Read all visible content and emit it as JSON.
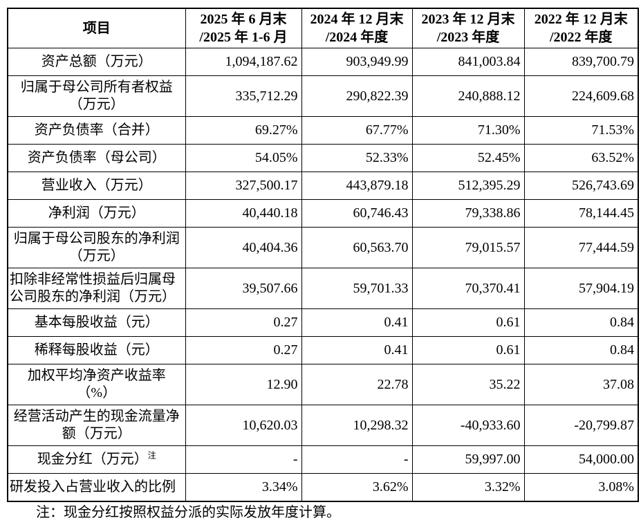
{
  "table": {
    "header": {
      "item_label": "项目",
      "periods": [
        {
          "line1": "2025 年 6 月末",
          "line2": "/2025 年 1-6 月"
        },
        {
          "line1": "2024 年 12 月末",
          "line2": "/2024 年度"
        },
        {
          "line1": "2023 年 12 月末",
          "line2": "/2023 年度"
        },
        {
          "line1": "2022 年 12 月末",
          "line2": "/2022 年度"
        }
      ]
    },
    "rows": [
      {
        "label": "资产总额（万元）",
        "align": "center",
        "values": [
          "1,094,187.62",
          "903,949.99",
          "841,003.84",
          "839,700.79"
        ]
      },
      {
        "label": "归属于母公司所有者权益\n（万元）",
        "align": "center",
        "values": [
          "335,712.29",
          "290,822.39",
          "240,888.12",
          "224,609.68"
        ]
      },
      {
        "label": "资产负债率（合并）",
        "align": "center",
        "values": [
          "69.27%",
          "67.77%",
          "71.30%",
          "71.53%"
        ]
      },
      {
        "label": "资产负债率（母公司）",
        "align": "center",
        "values": [
          "54.05%",
          "52.33%",
          "52.45%",
          "63.52%"
        ]
      },
      {
        "label": "营业收入（万元）",
        "align": "center",
        "values": [
          "327,500.17",
          "443,879.18",
          "512,395.29",
          "526,743.69"
        ]
      },
      {
        "label": "净利润（万元）",
        "align": "center",
        "values": [
          "40,440.18",
          "60,746.43",
          "79,338.86",
          "78,144.45"
        ]
      },
      {
        "label": "归属于母公司股东的净利润\n（万元）",
        "align": "center",
        "values": [
          "40,404.36",
          "60,563.70",
          "79,015.57",
          "77,444.59"
        ]
      },
      {
        "label": "扣除非经常性损益后归属母\n公司股东的净利润（万元）",
        "align": "left",
        "values": [
          "39,507.66",
          "59,701.33",
          "70,370.41",
          "57,904.19"
        ]
      },
      {
        "label": "基本每股收益（元）",
        "align": "center",
        "values": [
          "0.27",
          "0.41",
          "0.61",
          "0.84"
        ]
      },
      {
        "label": "稀释每股收益（元）",
        "align": "center",
        "values": [
          "0.27",
          "0.41",
          "0.61",
          "0.84"
        ]
      },
      {
        "label": "加权平均净资产收益率\n（%）",
        "align": "center",
        "values": [
          "12.90",
          "22.78",
          "35.22",
          "37.08"
        ]
      },
      {
        "label": "经营活动产生的现金流量净\n额（万元）",
        "align": "center",
        "values": [
          "10,620.03",
          "10,298.32",
          "-40,933.60",
          "-20,799.87"
        ]
      },
      {
        "label": "现金分红（万元）",
        "sup": "注",
        "align": "center",
        "values": [
          "-",
          "-",
          "59,997.00",
          "54,000.00"
        ]
      },
      {
        "label": "研发投入占营业收入的比例",
        "align": "left",
        "values": [
          "3.34%",
          "3.62%",
          "3.32%",
          "3.08%"
        ]
      }
    ]
  },
  "note": "注：现金分红按照权益分派的实际发放年度计算。",
  "colors": {
    "border": "#000000",
    "text": "#000000",
    "background": "#ffffff"
  }
}
